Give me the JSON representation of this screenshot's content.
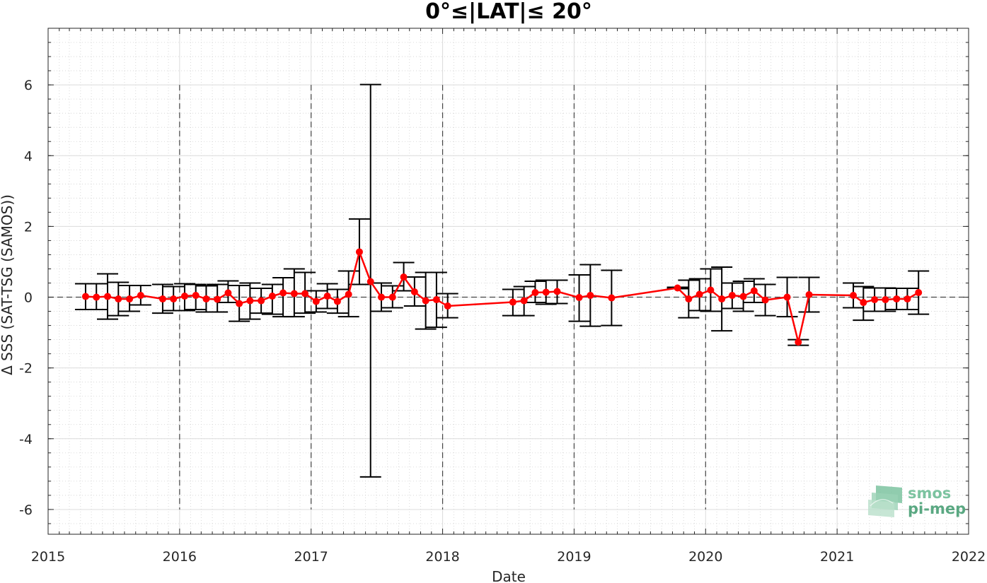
{
  "chart_data": {
    "type": "line",
    "title": "0°≤|LAT|≤ 20°",
    "xlabel": "Date",
    "ylabel": "Δ SSS (SAT-TSG (SAMOS))",
    "xlim": [
      "2015-01-01",
      "2022-01-01"
    ],
    "ylim": [
      -6.7,
      7.6
    ],
    "xticks": [
      "2015",
      "2016",
      "2017",
      "2018",
      "2019",
      "2020",
      "2021",
      "2022"
    ],
    "yticks": [
      -6,
      -4,
      -2,
      0,
      2,
      4,
      6
    ],
    "grid": true,
    "minor_grid": true,
    "zero_line": "dashed",
    "year_lines": "dashed",
    "series": [
      {
        "color": "#ff0000",
        "marker": "circle",
        "errorbar_color": "#000000",
        "points": [
          {
            "date": "2015-04-15",
            "y": 0.02,
            "lo": -0.35,
            "hi": 0.38
          },
          {
            "date": "2015-05-15",
            "y": 0.0,
            "lo": -0.35,
            "hi": 0.38
          },
          {
            "date": "2015-06-15",
            "y": 0.02,
            "lo": -0.62,
            "hi": 0.66
          },
          {
            "date": "2015-07-15",
            "y": -0.05,
            "lo": -0.52,
            "hi": 0.42
          },
          {
            "date": "2015-08-15",
            "y": -0.05,
            "lo": -0.4,
            "hi": 0.33
          },
          {
            "date": "2015-09-15",
            "y": 0.05,
            "lo": -0.22,
            "hi": 0.33
          },
          {
            "date": "2015-11-15",
            "y": -0.05,
            "lo": -0.45,
            "hi": 0.36
          },
          {
            "date": "2015-12-15",
            "y": -0.05,
            "lo": -0.38,
            "hi": 0.3
          },
          {
            "date": "2016-01-15",
            "y": 0.03,
            "lo": -0.38,
            "hi": 0.38
          },
          {
            "date": "2016-02-15",
            "y": 0.05,
            "lo": -0.35,
            "hi": 0.36
          },
          {
            "date": "2016-03-15",
            "y": -0.05,
            "lo": -0.42,
            "hi": 0.32
          },
          {
            "date": "2016-04-15",
            "y": -0.06,
            "lo": -0.42,
            "hi": 0.36
          },
          {
            "date": "2016-05-15",
            "y": 0.12,
            "lo": -0.15,
            "hi": 0.46
          },
          {
            "date": "2016-06-15",
            "y": -0.18,
            "lo": -0.68,
            "hi": 0.33
          },
          {
            "date": "2016-07-15",
            "y": -0.1,
            "lo": -0.62,
            "hi": 0.4
          },
          {
            "date": "2016-08-15",
            "y": -0.1,
            "lo": -0.45,
            "hi": 0.25
          },
          {
            "date": "2016-09-15",
            "y": 0.03,
            "lo": -0.48,
            "hi": 0.36
          },
          {
            "date": "2016-10-15",
            "y": 0.12,
            "lo": -0.55,
            "hi": 0.55
          },
          {
            "date": "2016-11-15",
            "y": 0.1,
            "lo": -0.55,
            "hi": 0.8
          },
          {
            "date": "2016-12-15",
            "y": 0.1,
            "lo": -0.45,
            "hi": 0.7
          },
          {
            "date": "2017-01-15",
            "y": -0.12,
            "lo": -0.42,
            "hi": 0.18
          },
          {
            "date": "2017-02-15",
            "y": 0.03,
            "lo": -0.32,
            "hi": 0.38
          },
          {
            "date": "2017-03-15",
            "y": -0.12,
            "lo": -0.45,
            "hi": 0.22
          },
          {
            "date": "2017-04-15",
            "y": 0.08,
            "lo": -0.55,
            "hi": 0.74
          },
          {
            "date": "2017-05-15",
            "y": 1.28,
            "lo": 0.36,
            "hi": 2.21
          },
          {
            "date": "2017-06-15",
            "y": 0.44,
            "lo": -5.08,
            "hi": 6.01
          },
          {
            "date": "2017-07-15",
            "y": 0.0,
            "lo": -0.4,
            "hi": 0.4
          },
          {
            "date": "2017-08-15",
            "y": 0.0,
            "lo": -0.3,
            "hi": 0.32
          },
          {
            "date": "2017-09-15",
            "y": 0.57,
            "lo": 0.18,
            "hi": 0.98
          },
          {
            "date": "2017-10-15",
            "y": 0.15,
            "lo": -0.25,
            "hi": 0.57
          },
          {
            "date": "2017-11-15",
            "y": -0.1,
            "lo": -0.9,
            "hi": 0.7
          },
          {
            "date": "2017-12-15",
            "y": -0.07,
            "lo": -0.85,
            "hi": 0.7
          },
          {
            "date": "2018-01-15",
            "y": -0.25,
            "lo": -0.58,
            "hi": 0.1
          },
          {
            "date": "2018-07-15",
            "y": -0.14,
            "lo": -0.52,
            "hi": 0.22
          },
          {
            "date": "2018-08-15",
            "y": -0.1,
            "lo": -0.52,
            "hi": 0.3
          },
          {
            "date": "2018-09-15",
            "y": 0.13,
            "lo": -0.15,
            "hi": 0.45
          },
          {
            "date": "2018-10-15",
            "y": 0.14,
            "lo": -0.2,
            "hi": 0.48
          },
          {
            "date": "2018-11-15",
            "y": 0.16,
            "lo": -0.18,
            "hi": 0.48
          },
          {
            "date": "2019-01-15",
            "y": -0.01,
            "lo": -0.68,
            "hi": 0.63
          },
          {
            "date": "2019-02-15",
            "y": 0.05,
            "lo": -0.82,
            "hi": 0.92
          },
          {
            "date": "2019-04-15",
            "y": -0.02,
            "lo": -0.8,
            "hi": 0.76
          },
          {
            "date": "2019-10-15",
            "y": 0.26,
            "lo": 0.24,
            "hi": 0.28
          },
          {
            "date": "2019-11-15",
            "y": -0.05,
            "lo": -0.58,
            "hi": 0.48
          },
          {
            "date": "2019-12-15",
            "y": 0.08,
            "lo": -0.38,
            "hi": 0.52
          },
          {
            "date": "2020-01-15",
            "y": 0.2,
            "lo": -0.4,
            "hi": 0.8
          },
          {
            "date": "2020-02-15",
            "y": -0.05,
            "lo": -0.95,
            "hi": 0.85
          },
          {
            "date": "2020-03-15",
            "y": 0.05,
            "lo": -0.32,
            "hi": 0.4
          },
          {
            "date": "2020-04-15",
            "y": 0.02,
            "lo": -0.4,
            "hi": 0.45
          },
          {
            "date": "2020-05-15",
            "y": 0.18,
            "lo": -0.15,
            "hi": 0.52
          },
          {
            "date": "2020-06-15",
            "y": -0.08,
            "lo": -0.52,
            "hi": 0.36
          },
          {
            "date": "2020-08-15",
            "y": 0.0,
            "lo": -0.55,
            "hi": 0.56
          },
          {
            "date": "2020-09-15",
            "y": -1.27,
            "lo": -1.36,
            "hi": -1.2
          },
          {
            "date": "2020-10-15",
            "y": 0.07,
            "lo": -0.42,
            "hi": 0.56
          },
          {
            "date": "2021-02-15",
            "y": 0.05,
            "lo": -0.3,
            "hi": 0.4
          },
          {
            "date": "2021-03-15",
            "y": -0.15,
            "lo": -0.65,
            "hi": 0.3
          },
          {
            "date": "2021-04-15",
            "y": -0.07,
            "lo": -0.4,
            "hi": 0.26
          },
          {
            "date": "2021-05-15",
            "y": -0.07,
            "lo": -0.4,
            "hi": 0.26
          },
          {
            "date": "2021-06-15",
            "y": -0.05,
            "lo": -0.35,
            "hi": 0.25
          },
          {
            "date": "2021-07-15",
            "y": -0.05,
            "lo": -0.35,
            "hi": 0.25
          },
          {
            "date": "2021-08-15",
            "y": 0.13,
            "lo": -0.48,
            "hi": 0.74
          }
        ]
      }
    ]
  },
  "logo": {
    "line1": "smos",
    "line2": "pi-mep",
    "color": "#5aa882"
  }
}
